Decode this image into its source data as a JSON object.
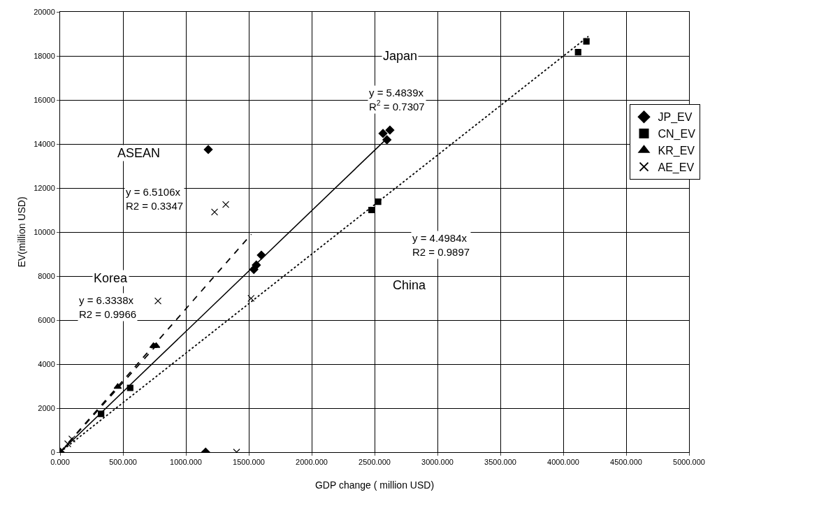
{
  "chart_data": {
    "type": "scatter",
    "xlabel": "GDP change ( million USD)",
    "ylabel": "EV(million USD)",
    "xlim": [
      0,
      5000
    ],
    "ylim": [
      0,
      20000
    ],
    "xticks": [
      {
        "value": 0,
        "label": "0.000"
      },
      {
        "value": 500,
        "label": "500.000"
      },
      {
        "value": 1000,
        "label": "1000.000"
      },
      {
        "value": 1500,
        "label": "1500.000"
      },
      {
        "value": 2000,
        "label": "2000.000"
      },
      {
        "value": 2500,
        "label": "2500.000"
      },
      {
        "value": 3000,
        "label": "3000.000"
      },
      {
        "value": 3500,
        "label": "3500.000"
      },
      {
        "value": 4000,
        "label": "4000.000"
      },
      {
        "value": 4500,
        "label": "4500.000"
      },
      {
        "value": 5000,
        "label": "5000.000"
      }
    ],
    "yticks": [
      0,
      2000,
      4000,
      6000,
      8000,
      10000,
      12000,
      14000,
      16000,
      18000,
      20000
    ],
    "grid": true,
    "legend": "top right",
    "series": [
      {
        "name": "JP_EV",
        "color": "#000000",
        "marker": "diamond",
        "x": [
          0,
          1157,
          1178,
          1540,
          1560,
          1600,
          2567,
          2598,
          2622
        ],
        "values": [
          0,
          0,
          13750,
          8300,
          8500,
          8950,
          14480,
          14190,
          14630
        ]
      },
      {
        "name": "CN_EV",
        "color": "#000000",
        "marker": "square",
        "x": [
          326,
          557,
          2476,
          2528,
          4118,
          4184
        ],
        "values": [
          1740,
          2920,
          11000,
          11380,
          18170,
          18660
        ]
      },
      {
        "name": "KR_EV",
        "color": "#000000",
        "marker": "triangle",
        "x": [
          458,
          742,
          764
        ],
        "values": [
          2970,
          4830,
          4830
        ]
      },
      {
        "name": "AE_EV",
        "color": "#000000",
        "marker": "cross",
        "x": [
          61,
          94,
          778,
          1228,
          1317,
          1403,
          1518
        ],
        "values": [
          380,
          600,
          6870,
          10910,
          11250,
          0,
          6990
        ]
      },
      {
        "type": "line",
        "color": "#000000",
        "line_style": "solid",
        "marker": "none",
        "x": [
          0,
          2600
        ],
        "values": [
          0,
          14260
        ]
      },
      {
        "type": "line",
        "color": "#000000",
        "line_style": "dotted",
        "marker": "none",
        "x": [
          0,
          4200
        ],
        "values": [
          0,
          18890
        ]
      },
      {
        "type": "line",
        "color": "#000000",
        "line_style": "dashed",
        "marker": "none",
        "x": [
          0,
          770
        ],
        "values": [
          0,
          4880
        ]
      },
      {
        "type": "line",
        "color": "#000000",
        "line_style": "dashed",
        "marker": "none",
        "x": [
          0,
          1520
        ],
        "values": [
          0,
          9900
        ]
      }
    ],
    "annotations": [
      "Japan",
      "y = 5.4839x\nR$^{2}$ = 0.7307",
      "ASEAN",
      "y = 6.5106x\nR2 = 0.3347",
      "Korea",
      "y = 6.3338x\nR2 = 0.9966",
      "China",
      "y = 4.4984x\nR2 = 0.9897"
    ]
  }
}
